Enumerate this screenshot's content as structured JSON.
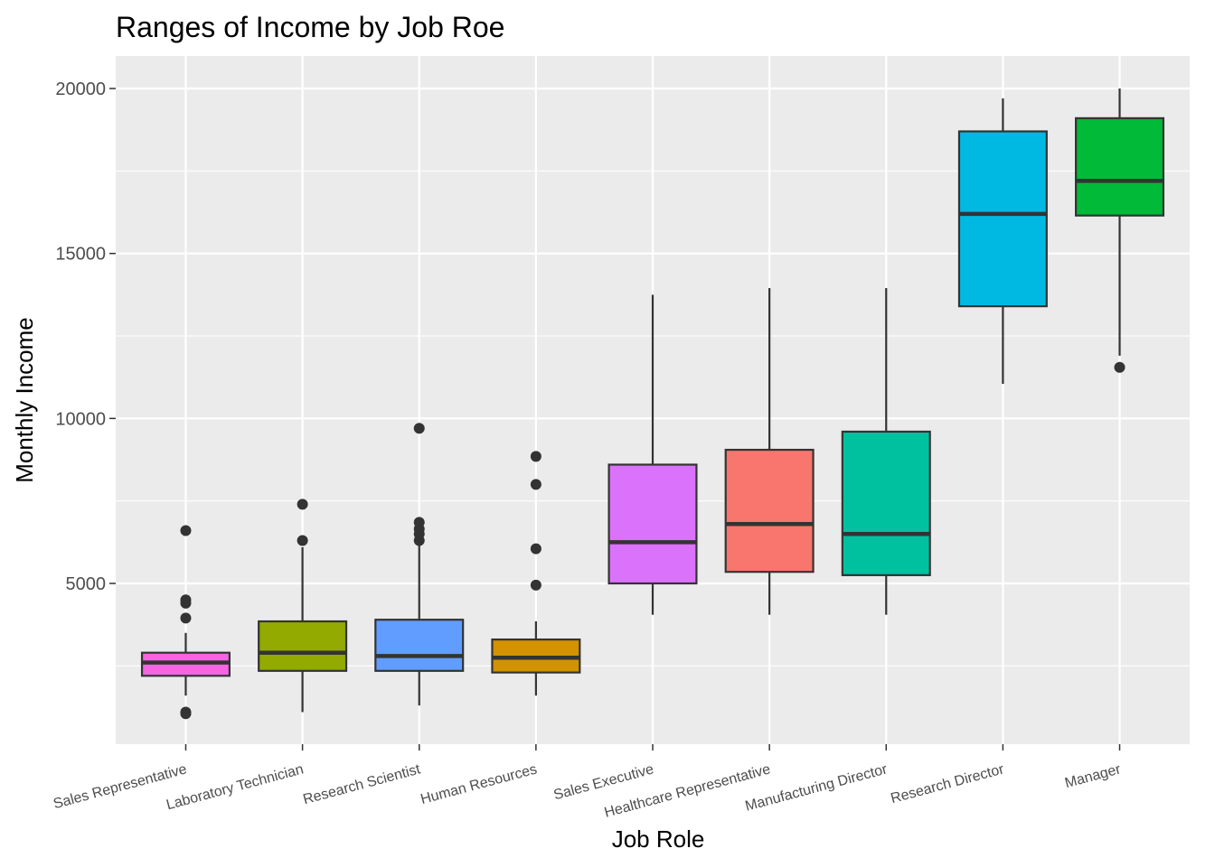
{
  "chart_data": {
    "type": "boxplot",
    "title": "Ranges of Income by Job Roe",
    "xlabel": "Job Role",
    "ylabel": "Monthly Income",
    "ylim": [
      0,
      21000
    ],
    "yticks": [
      5000,
      10000,
      15000,
      20000
    ],
    "y_tick_labels": [
      "5000",
      "10000",
      "15000",
      "20000"
    ],
    "grid": true,
    "legend": "none",
    "categories": [
      "Sales Representative",
      "Laboratory Technician",
      "Research Scientist",
      "Human Resources",
      "Sales Executive",
      "Healthcare Representative",
      "Manufacturing Director",
      "Research Director",
      "Manager"
    ],
    "boxes": [
      {
        "category": "Sales Representative",
        "color": "#F564E3",
        "whisker_low": 1600,
        "q1": 2200,
        "median": 2600,
        "q3": 2900,
        "whisker_high": 3500,
        "outliers": [
          1050,
          1100,
          3950,
          4400,
          4500,
          6600
        ]
      },
      {
        "category": "Laboratory Technician",
        "color": "#93AA00",
        "whisker_low": 1100,
        "q1": 2350,
        "median": 2900,
        "q3": 3850,
        "whisker_high": 6100,
        "outliers": [
          6300,
          7400
        ]
      },
      {
        "category": "Research Scientist",
        "color": "#619CFF",
        "whisker_low": 1300,
        "q1": 2350,
        "median": 2800,
        "q3": 3900,
        "whisker_high": 6250,
        "outliers": [
          6300,
          6500,
          6650,
          6850,
          9700
        ]
      },
      {
        "category": "Human Resources",
        "color": "#D39200",
        "whisker_low": 1600,
        "q1": 2300,
        "median": 2750,
        "q3": 3300,
        "whisker_high": 3850,
        "outliers": [
          4950,
          6050,
          8000,
          8850
        ]
      },
      {
        "category": "Sales Executive",
        "color": "#DB72FB",
        "whisker_low": 4050,
        "q1": 5000,
        "median": 6250,
        "q3": 8600,
        "whisker_high": 13750,
        "outliers": []
      },
      {
        "category": "Healthcare Representative",
        "color": "#F8766D",
        "whisker_low": 4050,
        "q1": 5350,
        "median": 6800,
        "q3": 9050,
        "whisker_high": 13950,
        "outliers": []
      },
      {
        "category": "Manufacturing Director",
        "color": "#00C19F",
        "whisker_low": 4050,
        "q1": 5250,
        "median": 6500,
        "q3": 9600,
        "whisker_high": 13950,
        "outliers": []
      },
      {
        "category": "Research Director",
        "color": "#00B9E3",
        "whisker_low": 11050,
        "q1": 13400,
        "median": 16200,
        "q3": 18700,
        "whisker_high": 19700,
        "outliers": []
      },
      {
        "category": "Manager",
        "color": "#00BA38",
        "whisker_low": 11900,
        "q1": 16150,
        "median": 17200,
        "q3": 19100,
        "whisker_high": 20000,
        "outliers": [
          11550
        ]
      }
    ],
    "colors": {
      "panel_background": "#EBEBEB",
      "grid": "#FFFFFF",
      "box_outline": "#333333",
      "outlier": "#333333"
    }
  }
}
